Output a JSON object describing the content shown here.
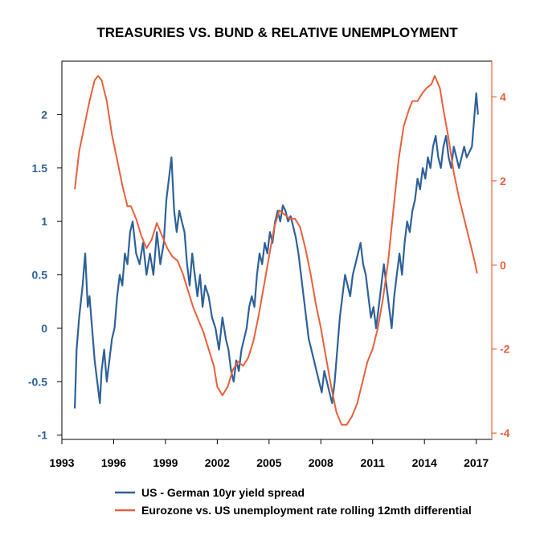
{
  "chart_data": {
    "type": "line",
    "title": "TREASURIES VS. BUND & RELATIVE UNEMPLOYMENT",
    "xlim": [
      1993,
      2017.9
    ],
    "x_ticks": [
      1993,
      1996,
      1999,
      2002,
      2005,
      2008,
      2011,
      2014,
      2017
    ],
    "x_tick_labels": [
      "1993",
      "1996",
      "1999",
      "2002",
      "2005",
      "2008",
      "2011",
      "2014",
      "2017"
    ],
    "y_left": {
      "ylim": [
        -1.04,
        2.5
      ],
      "ticks": [
        -1,
        -0.5,
        0,
        0.5,
        1,
        1.5,
        2
      ],
      "tick_labels": [
        "-1",
        "-0.5",
        "0",
        "0.5",
        "1",
        "1.5",
        "2"
      ],
      "color": "#2E6199"
    },
    "y_right": {
      "ylim": [
        -4.15,
        4.85
      ],
      "ticks": [
        -4,
        -2,
        0,
        2,
        4
      ],
      "tick_labels": [
        "-4",
        "-2",
        "0",
        "2",
        "4"
      ],
      "color": "#E8603C"
    },
    "legend_position": "bottom",
    "series": [
      {
        "name": "US - German 10yr yield spread",
        "axis": "left",
        "color": "#2E6199",
        "x": [
          1993.75,
          1993.85,
          1994.0,
          1994.2,
          1994.35,
          1994.5,
          1994.6,
          1994.75,
          1994.9,
          1995.05,
          1995.2,
          1995.3,
          1995.45,
          1995.6,
          1995.75,
          1995.9,
          1996.05,
          1996.2,
          1996.35,
          1996.5,
          1996.65,
          1996.8,
          1996.95,
          1997.1,
          1997.3,
          1997.5,
          1997.7,
          1997.9,
          1998.1,
          1998.3,
          1998.5,
          1998.7,
          1998.9,
          1999.05,
          1999.2,
          1999.35,
          1999.5,
          1999.65,
          1999.8,
          1999.95,
          2000.1,
          2000.25,
          2000.4,
          2000.55,
          2000.7,
          2000.85,
          2001.0,
          2001.15,
          2001.3,
          2001.5,
          2001.7,
          2001.9,
          2002.1,
          2002.3,
          2002.5,
          2002.65,
          2002.8,
          2002.95,
          2003.1,
          2003.25,
          2003.4,
          2003.55,
          2003.7,
          2003.85,
          2004.0,
          2004.15,
          2004.3,
          2004.45,
          2004.6,
          2004.75,
          2004.9,
          2005.05,
          2005.2,
          2005.35,
          2005.5,
          2005.65,
          2005.8,
          2005.95,
          2006.1,
          2006.25,
          2006.4,
          2006.55,
          2006.7,
          2006.85,
          2007.0,
          2007.15,
          2007.3,
          2007.45,
          2007.6,
          2007.75,
          2007.9,
          2008.05,
          2008.2,
          2008.35,
          2008.5,
          2008.65,
          2008.8,
          2008.95,
          2009.1,
          2009.25,
          2009.4,
          2009.55,
          2009.7,
          2009.85,
          2010.0,
          2010.15,
          2010.3,
          2010.45,
          2010.6,
          2010.75,
          2010.9,
          2011.05,
          2011.2,
          2011.35,
          2011.5,
          2011.65,
          2011.8,
          2011.95,
          2012.1,
          2012.25,
          2012.4,
          2012.55,
          2012.7,
          2012.85,
          2013.0,
          2013.15,
          2013.3,
          2013.45,
          2013.6,
          2013.75,
          2013.9,
          2014.05,
          2014.2,
          2014.35,
          2014.5,
          2014.65,
          2014.8,
          2014.95,
          2015.1,
          2015.25,
          2015.4,
          2015.55,
          2015.7,
          2015.85,
          2016.0,
          2016.15,
          2016.3,
          2016.45,
          2016.6,
          2016.75,
          2016.9,
          2017.0,
          2017.1
        ],
        "values": [
          -0.75,
          -0.2,
          0.1,
          0.4,
          0.7,
          0.2,
          0.3,
          0.0,
          -0.3,
          -0.5,
          -0.7,
          -0.4,
          -0.2,
          -0.5,
          -0.3,
          -0.1,
          0.0,
          0.3,
          0.5,
          0.4,
          0.7,
          0.6,
          0.9,
          1.0,
          0.7,
          0.6,
          0.8,
          0.5,
          0.7,
          0.5,
          0.9,
          0.6,
          0.8,
          1.2,
          1.4,
          1.6,
          1.1,
          0.9,
          1.1,
          1.0,
          0.9,
          0.6,
          0.4,
          0.7,
          0.5,
          0.3,
          0.5,
          0.2,
          0.4,
          0.3,
          0.1,
          0.0,
          -0.2,
          0.1,
          -0.1,
          -0.2,
          -0.4,
          -0.5,
          -0.3,
          -0.4,
          -0.2,
          -0.1,
          0.0,
          0.2,
          0.3,
          0.2,
          0.5,
          0.7,
          0.6,
          0.8,
          0.7,
          0.9,
          0.8,
          1.0,
          1.1,
          1.0,
          1.15,
          1.1,
          1.0,
          1.05,
          0.95,
          0.85,
          0.7,
          0.5,
          0.3,
          0.1,
          -0.1,
          -0.2,
          -0.3,
          -0.4,
          -0.5,
          -0.6,
          -0.4,
          -0.5,
          -0.6,
          -0.7,
          -0.5,
          -0.2,
          0.1,
          0.3,
          0.5,
          0.4,
          0.3,
          0.5,
          0.6,
          0.7,
          0.8,
          0.6,
          0.5,
          0.3,
          0.1,
          0.2,
          0.0,
          0.2,
          0.4,
          0.6,
          0.4,
          0.2,
          0.0,
          0.3,
          0.5,
          0.7,
          0.5,
          0.8,
          1.0,
          0.9,
          1.1,
          1.2,
          1.4,
          1.3,
          1.5,
          1.4,
          1.6,
          1.5,
          1.7,
          1.8,
          1.6,
          1.5,
          1.7,
          1.8,
          1.6,
          1.5,
          1.7,
          1.6,
          1.5,
          1.6,
          1.7,
          1.6,
          1.65,
          1.7,
          2.0,
          2.2,
          2.0
        ]
      },
      {
        "name": "Eurozone vs. US unemployment rate rolling 12mth differential",
        "axis": "right",
        "color": "#E8603C",
        "x": [
          1993.75,
          1994.0,
          1994.3,
          1994.6,
          1994.9,
          1995.1,
          1995.3,
          1995.6,
          1995.9,
          1996.2,
          1996.5,
          1996.8,
          1997.0,
          1997.3,
          1997.6,
          1997.9,
          1998.2,
          1998.5,
          1998.8,
          1999.1,
          1999.4,
          1999.7,
          2000.0,
          2000.3,
          2000.6,
          2000.9,
          2001.2,
          2001.5,
          2001.8,
          2002.0,
          2002.3,
          2002.6,
          2002.9,
          2003.2,
          2003.5,
          2003.8,
          2004.1,
          2004.4,
          2004.7,
          2005.0,
          2005.3,
          2005.6,
          2005.9,
          2006.2,
          2006.5,
          2006.8,
          2007.1,
          2007.4,
          2007.7,
          2008.0,
          2008.3,
          2008.6,
          2008.9,
          2009.2,
          2009.5,
          2009.8,
          2010.1,
          2010.4,
          2010.7,
          2011.0,
          2011.3,
          2011.6,
          2011.9,
          2012.2,
          2012.5,
          2012.8,
          2013.1,
          2013.3,
          2013.6,
          2013.9,
          2014.1,
          2014.4,
          2014.6,
          2014.9,
          2015.1,
          2015.4,
          2015.7,
          2016.0,
          2016.3,
          2016.6,
          2016.9,
          2017.05
        ],
        "values": [
          1.8,
          2.7,
          3.3,
          3.9,
          4.4,
          4.5,
          4.4,
          3.9,
          3.1,
          2.5,
          1.9,
          1.4,
          1.4,
          1.1,
          0.7,
          0.4,
          0.6,
          1.0,
          0.7,
          0.4,
          0.2,
          0.1,
          -0.2,
          -0.6,
          -1.0,
          -1.3,
          -1.6,
          -2.0,
          -2.4,
          -2.9,
          -3.1,
          -2.9,
          -2.5,
          -2.3,
          -2.4,
          -2.2,
          -1.8,
          -1.2,
          -0.5,
          0.2,
          0.9,
          1.3,
          1.2,
          1.1,
          1.1,
          0.9,
          0.4,
          -0.2,
          -0.9,
          -1.5,
          -2.2,
          -2.9,
          -3.5,
          -3.8,
          -3.8,
          -3.6,
          -3.3,
          -2.8,
          -2.3,
          -2.0,
          -1.5,
          -0.8,
          0.1,
          1.3,
          2.5,
          3.3,
          3.7,
          3.9,
          3.9,
          4.1,
          4.2,
          4.3,
          4.5,
          4.2,
          3.7,
          3.0,
          2.2,
          1.6,
          1.1,
          0.6,
          0.1,
          -0.2
        ]
      }
    ]
  }
}
